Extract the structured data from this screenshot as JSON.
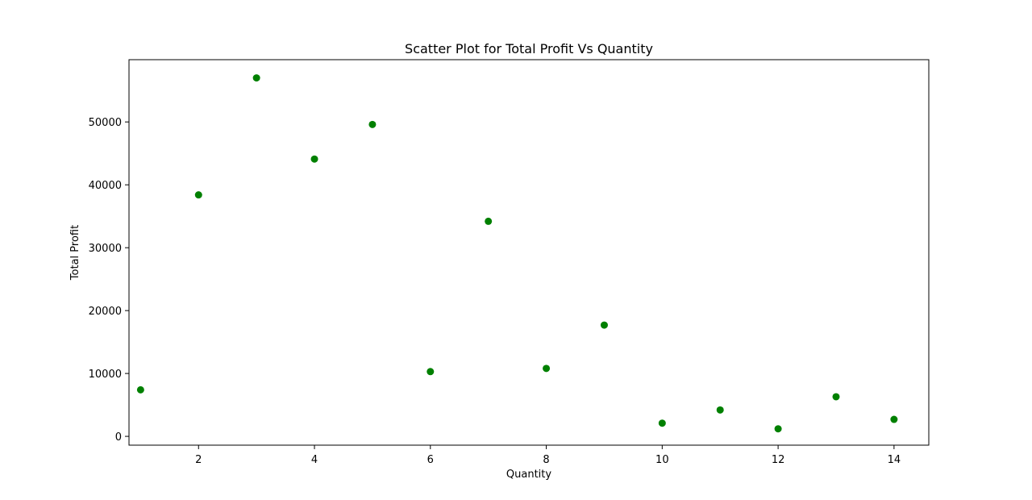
{
  "chart_data": {
    "type": "scatter",
    "title": "Scatter Plot for Total Profit Vs Quantity",
    "xlabel": "Quantity",
    "ylabel": "Total Profit",
    "xlim": [
      0.8,
      14.6
    ],
    "ylim": [
      -1400,
      59900
    ],
    "x_ticks": [
      2,
      4,
      6,
      8,
      10,
      12,
      14
    ],
    "y_ticks": [
      0,
      10000,
      20000,
      30000,
      40000,
      50000
    ],
    "grid": false,
    "legend": "none",
    "marker_color": "#008000",
    "series": [
      {
        "x": [
          1,
          2,
          3,
          4,
          5,
          6,
          7,
          8,
          9,
          10,
          11,
          12,
          13,
          14
        ],
        "y": [
          7400,
          38400,
          57000,
          44100,
          49600,
          10300,
          34200,
          10800,
          17700,
          2100,
          4200,
          1200,
          6300,
          2700
        ]
      }
    ]
  }
}
